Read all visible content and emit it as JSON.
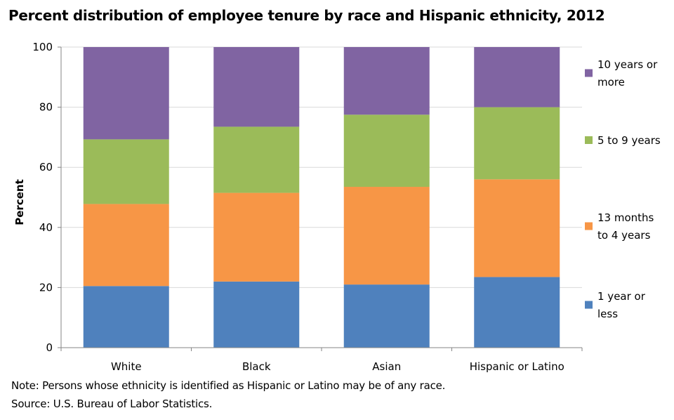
{
  "title": "Percent distribution of employee tenure by race and Hispanic ethnicity, 2012",
  "note": "Note: Persons whose ethnicity is identified as Hispanic or Latino may be of any race.",
  "source": "Source: U.S. Bureau of Labor Statistics.",
  "chart_data": {
    "type": "bar",
    "stacked": true,
    "categories": [
      "White",
      "Black",
      "Asian",
      "Hispanic or Latino"
    ],
    "ylabel": "Percent",
    "xlabel": "",
    "ylim": [
      0,
      100
    ],
    "yticks": [
      0,
      20,
      40,
      60,
      80,
      100
    ],
    "grid": true,
    "legend_position": "right",
    "series": [
      {
        "name": "1 year or less",
        "legend_lines": [
          "1 year or",
          "less"
        ],
        "color": "#4f81bd",
        "values": [
          20.5,
          22.0,
          21.0,
          23.5
        ]
      },
      {
        "name": "13 months to 4 years",
        "legend_lines": [
          "13 months",
          "to 4 years"
        ],
        "color": "#f79646",
        "values": [
          27.3,
          29.5,
          32.5,
          32.5
        ]
      },
      {
        "name": "5 to 9 years",
        "legend_lines": [
          "5 to 9 years"
        ],
        "color": "#9bbb59",
        "values": [
          21.5,
          22.0,
          24.0,
          24.0
        ]
      },
      {
        "name": "10 years or more",
        "legend_lines": [
          "10 years or",
          "more"
        ],
        "color": "#8064a2",
        "values": [
          30.7,
          26.5,
          22.5,
          20.0
        ]
      }
    ]
  }
}
